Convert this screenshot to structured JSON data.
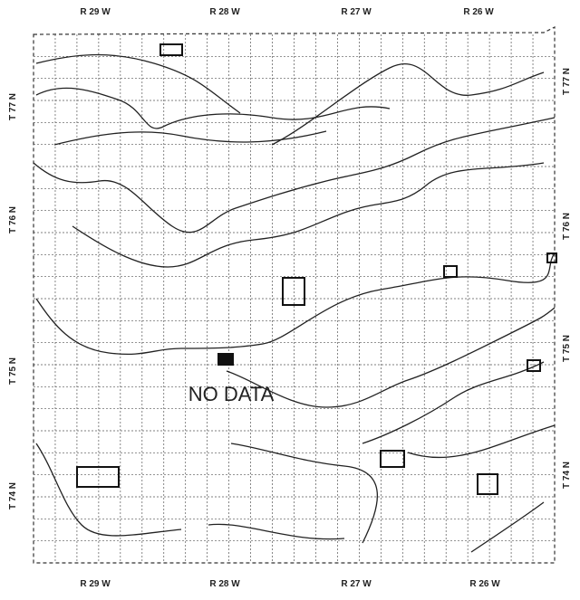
{
  "map": {
    "top_labels": [
      "R 29 W",
      "R 28 W",
      "R 27 W",
      "R 26 W"
    ],
    "bottom_labels": [
      "R 29 W",
      "R 28 W",
      "R 27 W",
      "R 26 W"
    ],
    "left_labels": [
      "T 77 N",
      "T 76 N",
      "T 75 N",
      "T 74 N"
    ],
    "right_labels": [
      "T 77 N",
      "T 76 N",
      "T 75 N",
      "T 74 N"
    ],
    "annotation": "NO DATA"
  }
}
